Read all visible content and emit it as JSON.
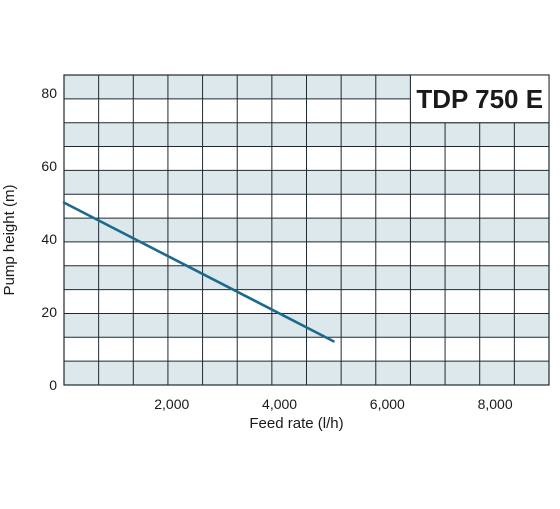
{
  "chart_data": {
    "type": "line",
    "title": "TDP 750 E",
    "xlabel": "Feed rate (l/h)",
    "ylabel": "Pump height (m)",
    "xlim": [
      0,
      9000
    ],
    "ylim": [
      0,
      85
    ],
    "x_ticks": [
      2000,
      4000,
      6000,
      8000
    ],
    "x_tick_labels": [
      "2,000",
      "4,000",
      "6,000",
      "8,000"
    ],
    "y_ticks": [
      0,
      20,
      40,
      60,
      80
    ],
    "y_tick_labels": [
      "0",
      "20",
      "40",
      "60",
      "80"
    ],
    "grid": true,
    "series": [
      {
        "x": [
          0,
          5000
        ],
        "y": [
          50,
          12
        ],
        "color": "#1b6a8e"
      }
    ],
    "colors": {
      "band_light": "#dde8ec",
      "band_white": "#ffffff",
      "grid_line": "#1f2a30",
      "line": "#1b6a8e"
    }
  }
}
